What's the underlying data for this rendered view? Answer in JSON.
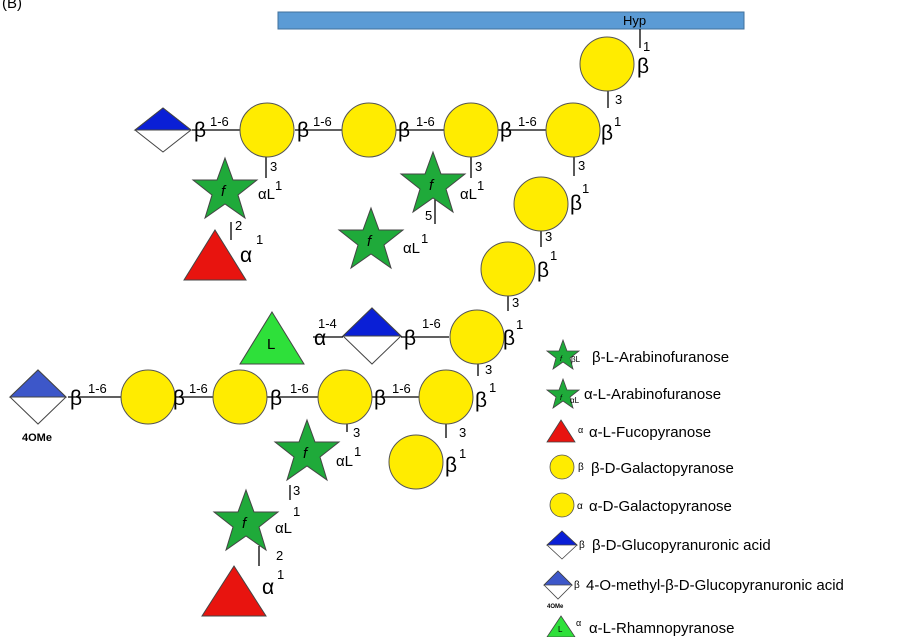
{
  "header_text": "(B)",
  "anchor_label": "Hyp",
  "colors": {
    "galactose": "#ffec00",
    "arabinose": "#1faa3a",
    "fucose": "#e8140f",
    "glcA_blue": "#0a1fd6",
    "glcA_me": "#3d57c9",
    "rhamnose": "#2ee03a",
    "bar": "#5b9bd5"
  },
  "linkage": {
    "b16": "1-6",
    "b14": "1-4",
    "beta": "β",
    "alpha": "α",
    "alphaL": "αL",
    "one": "1",
    "two": "2",
    "three": "3",
    "five": "5",
    "f": "f",
    "L": "L",
    "ome": "4OMe"
  },
  "legend": [
    {
      "icon": "star-beta-icon",
      "label": "β-L-Arabinofuranose",
      "mini": "βL"
    },
    {
      "icon": "star-alpha-icon",
      "label": "α-L-Arabinofuranose",
      "mini": "αL"
    },
    {
      "icon": "triangle-red-icon",
      "label": "α-L-Fucopyranose",
      "mini": "α"
    },
    {
      "icon": "circle-beta-icon",
      "label": "β-D-Galactopyranose",
      "mini": "β"
    },
    {
      "icon": "circle-alpha-icon",
      "label": "α-D-Galactopyranose",
      "mini": "α"
    },
    {
      "icon": "diamond-blue-icon",
      "label": "β-D-Glucopyranuronic acid",
      "mini": "β"
    },
    {
      "icon": "diamond-ome-icon",
      "label": "4-O-methyl-β-D-Glucopyranuronic acid",
      "mini": "β"
    },
    {
      "icon": "triangle-green-icon",
      "label": "α-L-Rhamnopyranose",
      "mini": "α"
    }
  ]
}
